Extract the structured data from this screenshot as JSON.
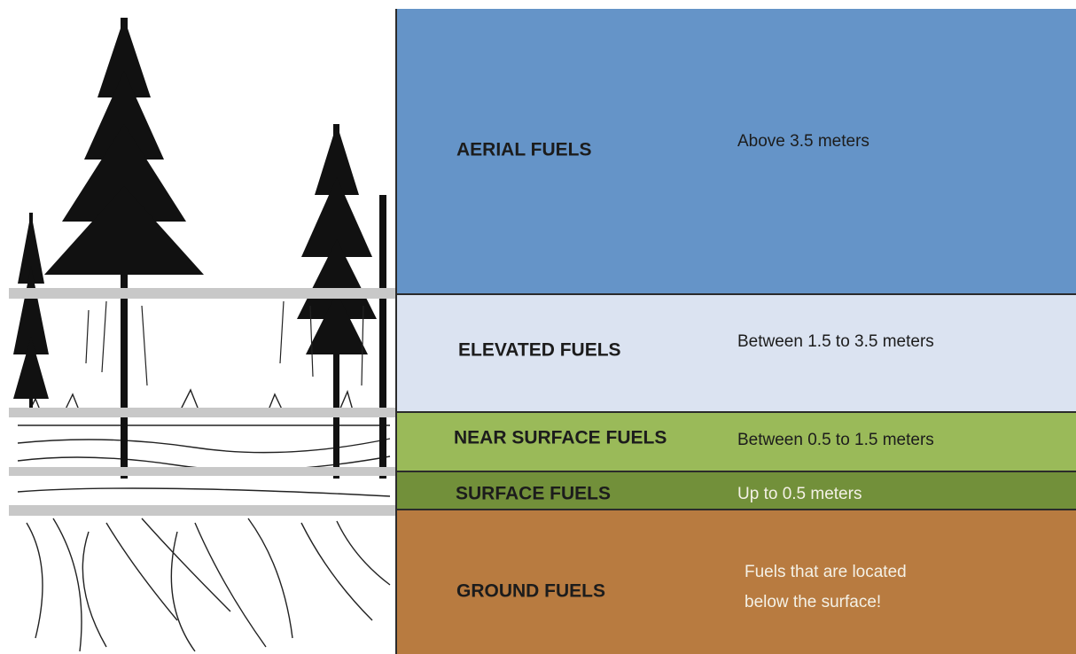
{
  "layers": [
    {
      "label": "AERIAL FUELS",
      "description": [
        "Above 3.5  meters"
      ]
    },
    {
      "label": "ELEVATED FUELS",
      "description": [
        "Between 1.5  to 3.5 meters"
      ]
    },
    {
      "label": "NEAR SURFACE FUELS",
      "description": [
        "Between 0.5  to 1.5 meters"
      ]
    },
    {
      "label": "SURFACE FUELS",
      "description": [
        "Up to 0.5 meters"
      ]
    },
    {
      "label": "GROUND FUELS",
      "description": [
        "Fuels that are located",
        "below the surface!"
      ]
    }
  ]
}
